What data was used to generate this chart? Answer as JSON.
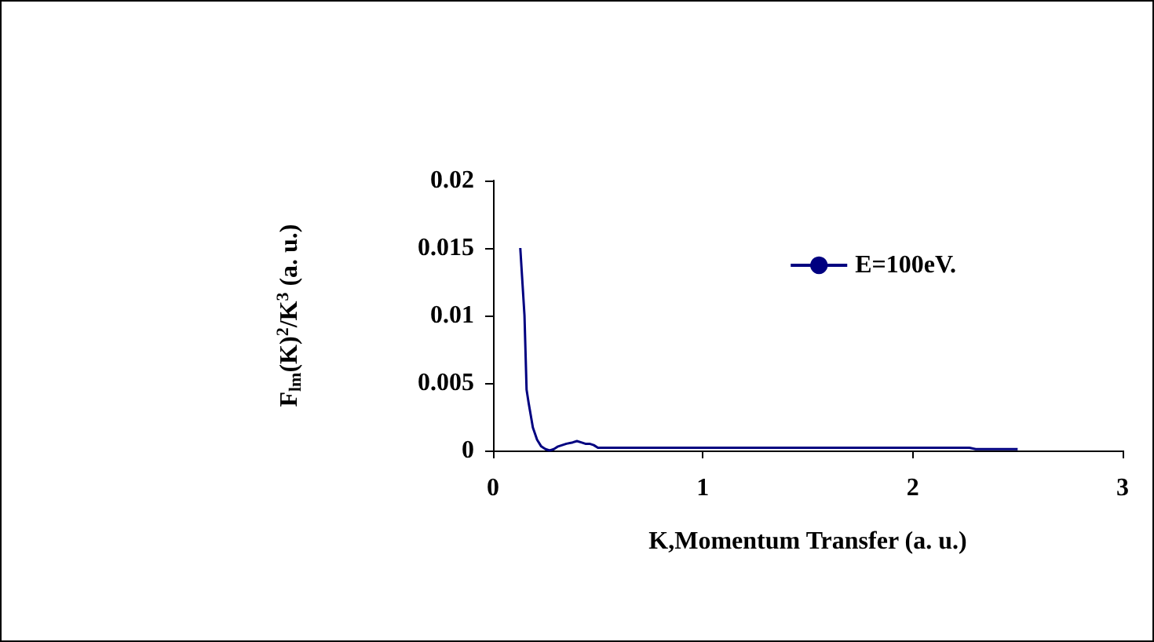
{
  "chart_data": {
    "type": "line",
    "xlabel": "K,Momentum Transfer (a. u.)",
    "ylabel": "F$_{lm}$(K)$^{2}$/K$^{3}$ (a. u.)",
    "xlim": [
      0,
      3
    ],
    "xticks": [
      0,
      1,
      2,
      3
    ],
    "ylim": [
      0,
      0.02
    ],
    "yticks": [
      0,
      0.005,
      0.01,
      0.015,
      0.02
    ],
    "grid": false,
    "legend": "top right",
    "marker": "none",
    "series": [
      {
        "name": "E=100eV.",
        "color": "#000080",
        "x": [
          0.13,
          0.15,
          0.16,
          0.17,
          0.19,
          0.21,
          0.23,
          0.25,
          0.27,
          0.29,
          0.31,
          0.33,
          0.35,
          0.38,
          0.4,
          0.42,
          0.44,
          0.46,
          0.48,
          0.5,
          0.6,
          0.8,
          1.0,
          1.5,
          2.0,
          2.27,
          2.3,
          2.5
        ],
        "values": [
          0.015,
          0.01,
          0.0045,
          0.0035,
          0.0017,
          0.0008,
          0.0003,
          0.0001,
          0.0,
          0.0001,
          0.0003,
          0.0004,
          0.0005,
          0.0006,
          0.0007,
          0.0006,
          0.0005,
          0.0005,
          0.0004,
          0.0002,
          0.0002,
          0.0002,
          0.0002,
          0.0002,
          0.0002,
          0.0002,
          0.0001,
          0.0001
        ]
      }
    ]
  }
}
